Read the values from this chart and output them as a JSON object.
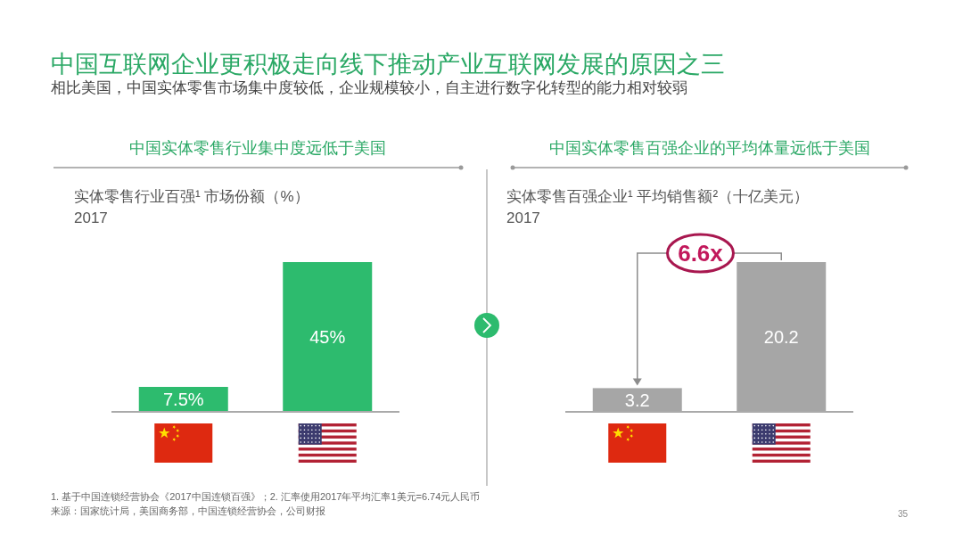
{
  "chart_data": [
    {
      "type": "other",
      "title": "中国互联网企业更积极走向线下推动产业互联网发展的原因之三",
      "subtitle": "相比美国，中国实体零售市场集中度较低，企业规模较小，自主进行数字化转型的能力相对较弱",
      "annotations": [
        "1. 基于中国连锁经营协会《2017中国连锁百强》；2. 汇率使用2017年平均汇率1美元=6.74元人民币",
        "来源：国家统计局，美国商务部，中国连锁经营协会，公司财报",
        "35"
      ]
    },
    {
      "type": "bar",
      "title": "中国实体零售行业集中度远低于美国",
      "ylabel": "实体零售行业百强¹ 市场份额（%）",
      "subtitle": "2017",
      "categories": [
        null,
        null
      ],
      "values": [
        7.5,
        45
      ],
      "color": "#2dbb6e",
      "value_labels": [
        "7.5%",
        "45%"
      ]
    },
    {
      "type": "bar",
      "title": "中国实体零售百强企业的平均体量远低于美国",
      "ylabel": "实体零售百强企业¹ 平均销售额²（十亿美元）",
      "subtitle": "2017",
      "categories": [
        null,
        null
      ],
      "values": [
        3.2,
        20.2
      ],
      "color": "#a6a6a6",
      "data_labels": true,
      "annotations": [
        "6.6x"
      ]
    }
  ]
}
